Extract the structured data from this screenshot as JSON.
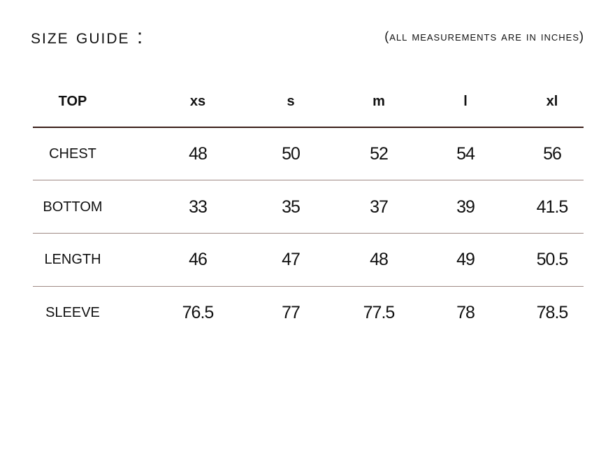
{
  "title": "SIZE GUIDE :",
  "note": "(ALL MEASUREMENTS ARE IN INCHES)",
  "table": {
    "header": [
      "TOP",
      "xs",
      "s",
      "m",
      "l",
      "xl"
    ],
    "rows": [
      {
        "label": "CHEST",
        "values": [
          "48",
          "50",
          "52",
          "54",
          "56"
        ]
      },
      {
        "label": "BOTTOM",
        "values": [
          "33",
          "35",
          "37",
          "39",
          "41.5"
        ]
      },
      {
        "label": "LENGTH",
        "values": [
          "46",
          "47",
          "48",
          "49",
          "50.5"
        ]
      },
      {
        "label": "SLEEVE",
        "values": [
          "76.5",
          "77",
          "77.5",
          "78",
          "78.5"
        ]
      }
    ]
  },
  "colors": {
    "header_rule": "#3a1f1a",
    "row_rule": "#a08a85"
  }
}
